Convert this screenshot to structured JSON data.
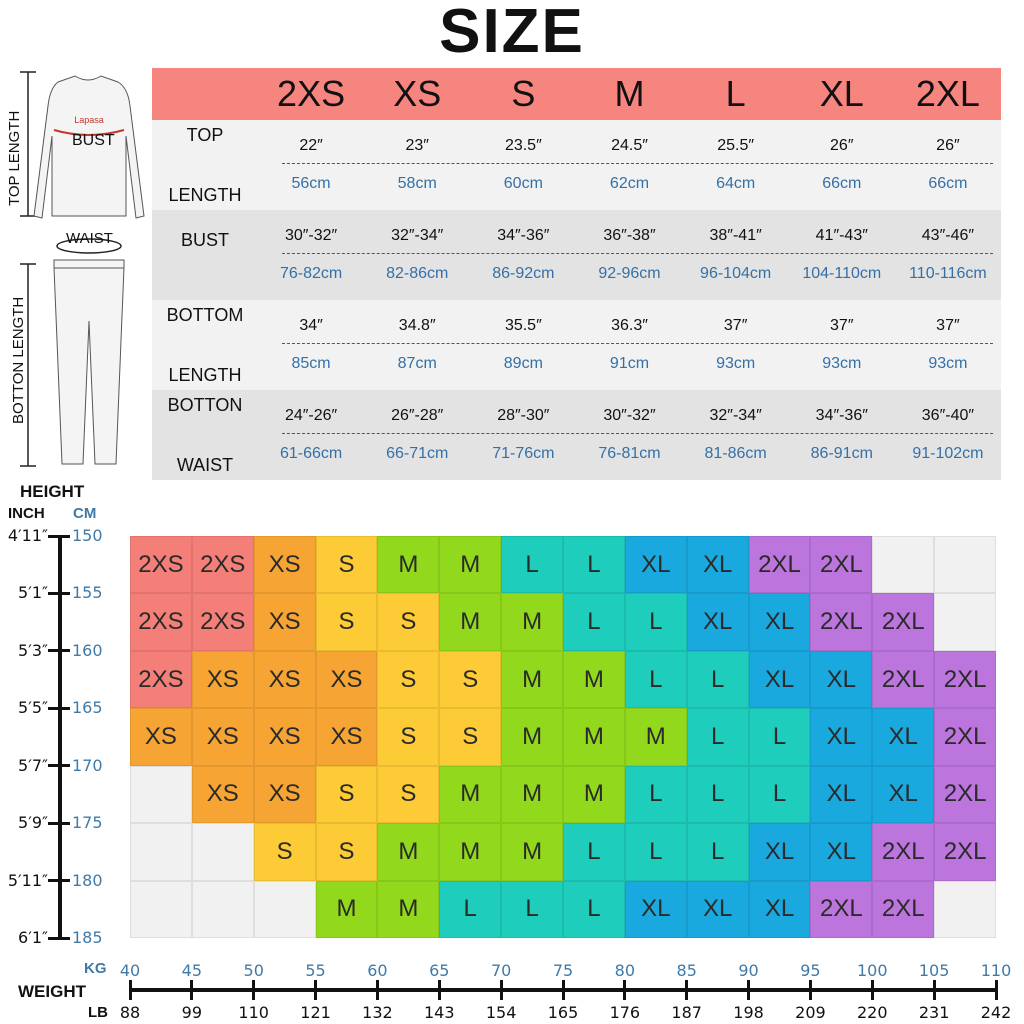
{
  "title": "SIZE",
  "figures": {
    "top_length": "TOP LENGTH",
    "bust": "BUST",
    "brand": "Lapasa",
    "waist": "WAIST",
    "bottom_length": "BOTTON LENGTH"
  },
  "table": {
    "sizes": [
      "2XS",
      "XS",
      "S",
      "M",
      "L",
      "XL",
      "2XL"
    ],
    "rows": [
      {
        "label_1": "TOP",
        "label_2": "LENGTH",
        "inch": [
          "22″",
          "23″",
          "23.5″",
          "24.5″",
          "25.5″",
          "26″",
          "26″"
        ],
        "cm": [
          "56cm",
          "58cm",
          "60cm",
          "62cm",
          "64cm",
          "66cm",
          "66cm"
        ]
      },
      {
        "label_1": "BUST",
        "label_2": "",
        "inch": [
          "30″-32″",
          "32″-34″",
          "34″-36″",
          "36″-38″",
          "38″-41″",
          "41″-43″",
          "43″-46″"
        ],
        "cm": [
          "76-82cm",
          "82-86cm",
          "86-92cm",
          "92-96cm",
          "96-104cm",
          "104-110cm",
          "110-116cm"
        ]
      },
      {
        "label_1": "BOTTOM",
        "label_2": "LENGTH",
        "inch": [
          "34″",
          "34.8″",
          "35.5″",
          "36.3″",
          "37″",
          "37″",
          "37″"
        ],
        "cm": [
          "85cm",
          "87cm",
          "89cm",
          "91cm",
          "93cm",
          "93cm",
          "93cm"
        ]
      },
      {
        "label_1": "BOTTON",
        "label_2": "WAIST",
        "inch": [
          "24″-26″",
          "26″-28″",
          "28″-30″",
          "30″-32″",
          "32″-34″",
          "34″-36″",
          "36″-40″"
        ],
        "cm": [
          "61-66cm",
          "66-71cm",
          "71-76cm",
          "76-81cm",
          "81-86cm",
          "86-91cm",
          "91-102cm"
        ]
      }
    ]
  },
  "height_axis": {
    "title": "HEIGHT",
    "unit_inch": "INCH",
    "unit_cm": "CM",
    "inch": [
      "4′11″",
      "5′1″",
      "5′3″",
      "5′5″",
      "5′7″",
      "5′9″",
      "5′11″",
      "6′1″"
    ],
    "cm": [
      "150",
      "155",
      "160",
      "165",
      "170",
      "175",
      "180",
      "185"
    ]
  },
  "weight_axis": {
    "title": "WEIGHT",
    "unit_kg": "KG",
    "unit_lb": "LB",
    "kg": [
      "40",
      "45",
      "50",
      "55",
      "60",
      "65",
      "70",
      "75",
      "80",
      "85",
      "90",
      "95",
      "100",
      "105",
      "110"
    ],
    "lb": [
      "88",
      "99",
      "110",
      "121",
      "132",
      "143",
      "154",
      "165",
      "176",
      "187",
      "198",
      "209",
      "220",
      "231",
      "242"
    ]
  },
  "size_colors": {
    "2XS": "#f47f79",
    "XS": "#f6a534",
    "S": "#fdcb35",
    "M": "#92d81c",
    "L": "#1fcdbc",
    "XL": "#19a9df",
    "2XL": "#bb75dc",
    "": "#f1f1f1"
  },
  "size_grid": [
    [
      "2XS",
      "2XS",
      "XS",
      "S",
      "M",
      "M",
      "L",
      "L",
      "XL",
      "XL",
      "2XL",
      "2XL",
      "",
      ""
    ],
    [
      "2XS",
      "2XS",
      "XS",
      "S",
      "S",
      "M",
      "M",
      "L",
      "L",
      "XL",
      "XL",
      "2XL",
      "2XL",
      ""
    ],
    [
      "2XS",
      "XS",
      "XS",
      "XS",
      "S",
      "S",
      "M",
      "M",
      "L",
      "L",
      "XL",
      "XL",
      "2XL",
      "2XL"
    ],
    [
      "XS",
      "XS",
      "XS",
      "XS",
      "S",
      "S",
      "M",
      "M",
      "M",
      "L",
      "L",
      "XL",
      "XL",
      "2XL"
    ],
    [
      "",
      "XS",
      "XS",
      "S",
      "S",
      "M",
      "M",
      "M",
      "L",
      "L",
      "L",
      "XL",
      "XL",
      "2XL"
    ],
    [
      "",
      "",
      "S",
      "S",
      "M",
      "M",
      "M",
      "L",
      "L",
      "L",
      "XL",
      "XL",
      "2XL",
      "2XL"
    ],
    [
      "",
      "",
      "",
      "M",
      "M",
      "L",
      "L",
      "L",
      "XL",
      "XL",
      "XL",
      "2XL",
      "2XL",
      ""
    ]
  ]
}
